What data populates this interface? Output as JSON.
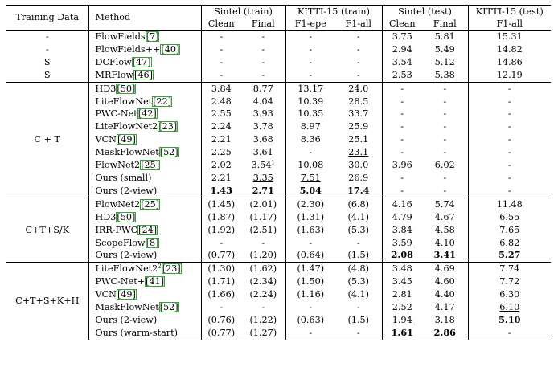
{
  "header": {
    "training_data": "Training Data",
    "method": "Method",
    "groups": [
      "Sintel (train)",
      "KITTI-15 (train)",
      "Sintel (test)",
      "KITTI-15 (test)"
    ],
    "sub": [
      "Clean",
      "Final",
      "F1-epe",
      "F1-all",
      "Clean",
      "Final",
      "F1-all"
    ]
  },
  "sections": [
    {
      "training": [
        "-",
        "-",
        "S",
        "S"
      ],
      "rows": [
        {
          "name": "FlowFields",
          "ref": "7",
          "sup": "",
          "cells": [
            {
              "v": "-"
            },
            {
              "v": "-"
            },
            {
              "v": "-"
            },
            {
              "v": "-"
            },
            {
              "v": "3.75"
            },
            {
              "v": "5.81"
            },
            {
              "v": "15.31"
            }
          ]
        },
        {
          "name": "FlowFields++",
          "ref": "40",
          "sup": "",
          "cells": [
            {
              "v": "-"
            },
            {
              "v": "-"
            },
            {
              "v": "-"
            },
            {
              "v": "-"
            },
            {
              "v": "2.94"
            },
            {
              "v": "5.49"
            },
            {
              "v": "14.82"
            }
          ]
        },
        {
          "name": "DCFlow",
          "ref": "47",
          "sup": "",
          "cells": [
            {
              "v": "-"
            },
            {
              "v": "-"
            },
            {
              "v": "-"
            },
            {
              "v": "-"
            },
            {
              "v": "3.54"
            },
            {
              "v": "5.12"
            },
            {
              "v": "14.86"
            }
          ]
        },
        {
          "name": "MRFlow",
          "ref": "46",
          "sup": "",
          "cells": [
            {
              "v": "-"
            },
            {
              "v": "-"
            },
            {
              "v": "-"
            },
            {
              "v": "-"
            },
            {
              "v": "2.53"
            },
            {
              "v": "5.38"
            },
            {
              "v": "12.19"
            }
          ]
        }
      ]
    },
    {
      "training": "C + T",
      "rows": [
        {
          "name": "HD3",
          "ref": "50",
          "sup": "",
          "cells": [
            {
              "v": "3.84"
            },
            {
              "v": "8.77"
            },
            {
              "v": "13.17"
            },
            {
              "v": "24.0"
            },
            {
              "v": "-"
            },
            {
              "v": "-"
            },
            {
              "v": "-"
            }
          ]
        },
        {
          "name": "LiteFlowNet",
          "ref": "22",
          "sup": "",
          "cells": [
            {
              "v": "2.48"
            },
            {
              "v": "4.04"
            },
            {
              "v": "10.39"
            },
            {
              "v": "28.5"
            },
            {
              "v": "-"
            },
            {
              "v": "-"
            },
            {
              "v": "-"
            }
          ]
        },
        {
          "name": "PWC-Net",
          "ref": "42",
          "sup": "",
          "cells": [
            {
              "v": "2.55"
            },
            {
              "v": "3.93"
            },
            {
              "v": "10.35"
            },
            {
              "v": "33.7"
            },
            {
              "v": "-"
            },
            {
              "v": "-"
            },
            {
              "v": "-"
            }
          ]
        },
        {
          "name": "LiteFlowNet2",
          "ref": "23",
          "sup": "",
          "cells": [
            {
              "v": "2.24"
            },
            {
              "v": "3.78"
            },
            {
              "v": "8.97"
            },
            {
              "v": "25.9"
            },
            {
              "v": "-"
            },
            {
              "v": "-"
            },
            {
              "v": "-"
            }
          ]
        },
        {
          "name": "VCN",
          "ref": "49",
          "sup": "",
          "cells": [
            {
              "v": "2.21"
            },
            {
              "v": "3.68"
            },
            {
              "v": "8.36"
            },
            {
              "v": "25.1"
            },
            {
              "v": "-"
            },
            {
              "v": "-"
            },
            {
              "v": "-"
            }
          ]
        },
        {
          "name": "MaskFlowNet",
          "ref": "52",
          "sup": "",
          "cells": [
            {
              "v": "2.25"
            },
            {
              "v": "3.61"
            },
            {
              "v": "-"
            },
            {
              "v": "23.1",
              "u": true
            },
            {
              "v": "-"
            },
            {
              "v": "-"
            },
            {
              "v": "-"
            }
          ]
        },
        {
          "name": "FlowNet2",
          "ref": "25",
          "sup": "",
          "cells": [
            {
              "v": "2.02",
              "u": true
            },
            {
              "v": "3.54",
              "s": "1"
            },
            {
              "v": "10.08"
            },
            {
              "v": "30.0"
            },
            {
              "v": "3.96"
            },
            {
              "v": "6.02"
            },
            {
              "v": "-"
            }
          ]
        },
        {
          "name": "Ours (small)",
          "ref": "",
          "sup": "",
          "cells": [
            {
              "v": "2.21"
            },
            {
              "v": "3.35",
              "u": true
            },
            {
              "v": "7.51",
              "u": true
            },
            {
              "v": "26.9"
            },
            {
              "v": "-"
            },
            {
              "v": "-"
            },
            {
              "v": "-"
            }
          ]
        },
        {
          "name": "Ours (2-view)",
          "ref": "",
          "sup": "",
          "cells": [
            {
              "v": "1.43",
              "b": true
            },
            {
              "v": "2.71",
              "b": true
            },
            {
              "v": "5.04",
              "b": true
            },
            {
              "v": "17.4",
              "b": true
            },
            {
              "v": "-"
            },
            {
              "v": "-"
            },
            {
              "v": "-"
            }
          ]
        }
      ]
    },
    {
      "training": "C+T+S/K",
      "rows": [
        {
          "name": "FlowNet2",
          "ref": "25",
          "sup": "",
          "cells": [
            {
              "v": "(1.45)"
            },
            {
              "v": "(2.01)"
            },
            {
              "v": "(2.30)"
            },
            {
              "v": "(6.8)"
            },
            {
              "v": "4.16"
            },
            {
              "v": "5.74"
            },
            {
              "v": "11.48"
            }
          ]
        },
        {
          "name": "HD3",
          "ref": "50",
          "sup": "",
          "cells": [
            {
              "v": "(1.87)"
            },
            {
              "v": "(1.17)"
            },
            {
              "v": "(1.31)"
            },
            {
              "v": "(4.1)"
            },
            {
              "v": "4.79"
            },
            {
              "v": "4.67"
            },
            {
              "v": "6.55"
            }
          ]
        },
        {
          "name": "IRR-PWC",
          "ref": "24",
          "sup": "",
          "cells": [
            {
              "v": "(1.92)"
            },
            {
              "v": "(2.51)"
            },
            {
              "v": "(1.63)"
            },
            {
              "v": "(5.3)"
            },
            {
              "v": "3.84"
            },
            {
              "v": "4.58"
            },
            {
              "v": "7.65"
            }
          ]
        },
        {
          "name": "ScopeFlow",
          "ref": "8",
          "sup": "",
          "cells": [
            {
              "v": "-"
            },
            {
              "v": "-"
            },
            {
              "v": "-"
            },
            {
              "v": "-"
            },
            {
              "v": "3.59",
              "u": true
            },
            {
              "v": "4.10",
              "u": true
            },
            {
              "v": "6.82",
              "u": true
            }
          ]
        },
        {
          "name": "Ours (2-view)",
          "ref": "",
          "sup": "",
          "cells": [
            {
              "v": "(0.77)"
            },
            {
              "v": "(1.20)"
            },
            {
              "v": "(0.64)"
            },
            {
              "v": "(1.5)"
            },
            {
              "v": "2.08",
              "b": true
            },
            {
              "v": "3.41",
              "b": true
            },
            {
              "v": "5.27",
              "b": true
            }
          ]
        }
      ]
    },
    {
      "training": "C+T+S+K+H",
      "rows": [
        {
          "name": "LiteFlowNet2",
          "ref": "23",
          "sup": "2",
          "cells": [
            {
              "v": "(1.30)"
            },
            {
              "v": "(1.62)"
            },
            {
              "v": "(1.47)"
            },
            {
              "v": "(4.8)"
            },
            {
              "v": "3.48"
            },
            {
              "v": "4.69"
            },
            {
              "v": "7.74"
            }
          ]
        },
        {
          "name": "PWC-Net+",
          "ref": "41",
          "sup": "",
          "cells": [
            {
              "v": "(1.71)"
            },
            {
              "v": "(2.34)"
            },
            {
              "v": "(1.50)"
            },
            {
              "v": "(5.3)"
            },
            {
              "v": "3.45"
            },
            {
              "v": "4.60"
            },
            {
              "v": "7.72"
            }
          ]
        },
        {
          "name": "VCN",
          "ref": "49",
          "sup": "",
          "cells": [
            {
              "v": "(1.66)"
            },
            {
              "v": "(2.24)"
            },
            {
              "v": "(1.16)"
            },
            {
              "v": "(4.1)"
            },
            {
              "v": "2.81"
            },
            {
              "v": "4.40"
            },
            {
              "v": "6.30"
            }
          ]
        },
        {
          "name": "MaskFlowNet",
          "ref": "52",
          "sup": "",
          "cells": [
            {
              "v": "-"
            },
            {
              "v": "-"
            },
            {
              "v": "-"
            },
            {
              "v": "-"
            },
            {
              "v": "2.52"
            },
            {
              "v": "4.17"
            },
            {
              "v": "6.10",
              "u": true
            }
          ]
        },
        {
          "name": "Ours (2-view)",
          "ref": "",
          "sup": "",
          "cells": [
            {
              "v": "(0.76)"
            },
            {
              "v": "(1.22)"
            },
            {
              "v": "(0.63)"
            },
            {
              "v": "(1.5)"
            },
            {
              "v": "1.94",
              "u": true
            },
            {
              "v": "3.18",
              "u": true
            },
            {
              "v": "5.10",
              "b": true
            }
          ]
        },
        {
          "name": "Ours (warm-start)",
          "ref": "",
          "sup": "",
          "cells": [
            {
              "v": "(0.77)"
            },
            {
              "v": "(1.27)"
            },
            {
              "v": "-"
            },
            {
              "v": "-"
            },
            {
              "v": "1.61",
              "b": true
            },
            {
              "v": "2.86",
              "b": true
            },
            {
              "v": "-"
            }
          ]
        }
      ]
    }
  ]
}
